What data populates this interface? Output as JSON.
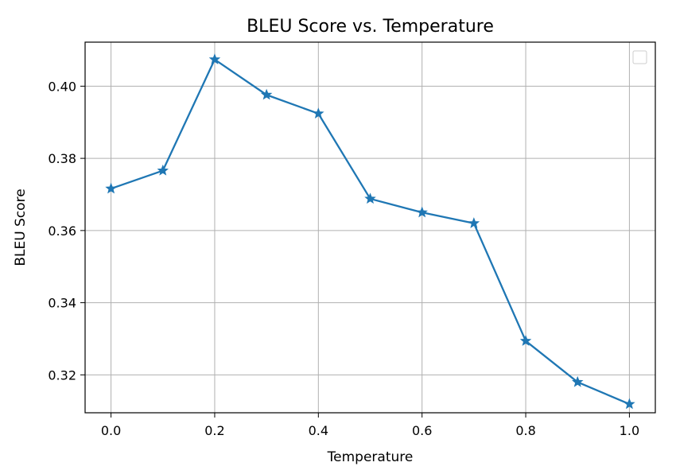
{
  "chart_data": {
    "type": "line",
    "title": "BLEU Score vs. Temperature",
    "xlabel": "Temperature",
    "ylabel": "BLEU Score",
    "xlim": [
      -0.05,
      1.05
    ],
    "ylim": [
      0.3095,
      0.4122
    ],
    "xticks": [
      0.0,
      0.2,
      0.4,
      0.6,
      0.8,
      1.0
    ],
    "xtick_labels": [
      "0.0",
      "0.2",
      "0.4",
      "0.6",
      "0.8",
      "1.0"
    ],
    "yticks": [
      0.32,
      0.34,
      0.36,
      0.38,
      0.4
    ],
    "ytick_labels": [
      "0.32",
      "0.34",
      "0.36",
      "0.38",
      "0.40"
    ],
    "grid": true,
    "legend": "top-right",
    "marker": "star",
    "series": [
      {
        "color": "#1f77b4",
        "x": [
          0.0,
          0.1,
          0.2,
          0.3,
          0.4,
          0.5,
          0.6,
          0.7,
          0.8,
          0.9,
          1.0
        ],
        "y": [
          0.3716,
          0.3766,
          0.4074,
          0.3976,
          0.3924,
          0.3688,
          0.365,
          0.362,
          0.3294,
          0.318,
          0.3119
        ]
      }
    ]
  }
}
